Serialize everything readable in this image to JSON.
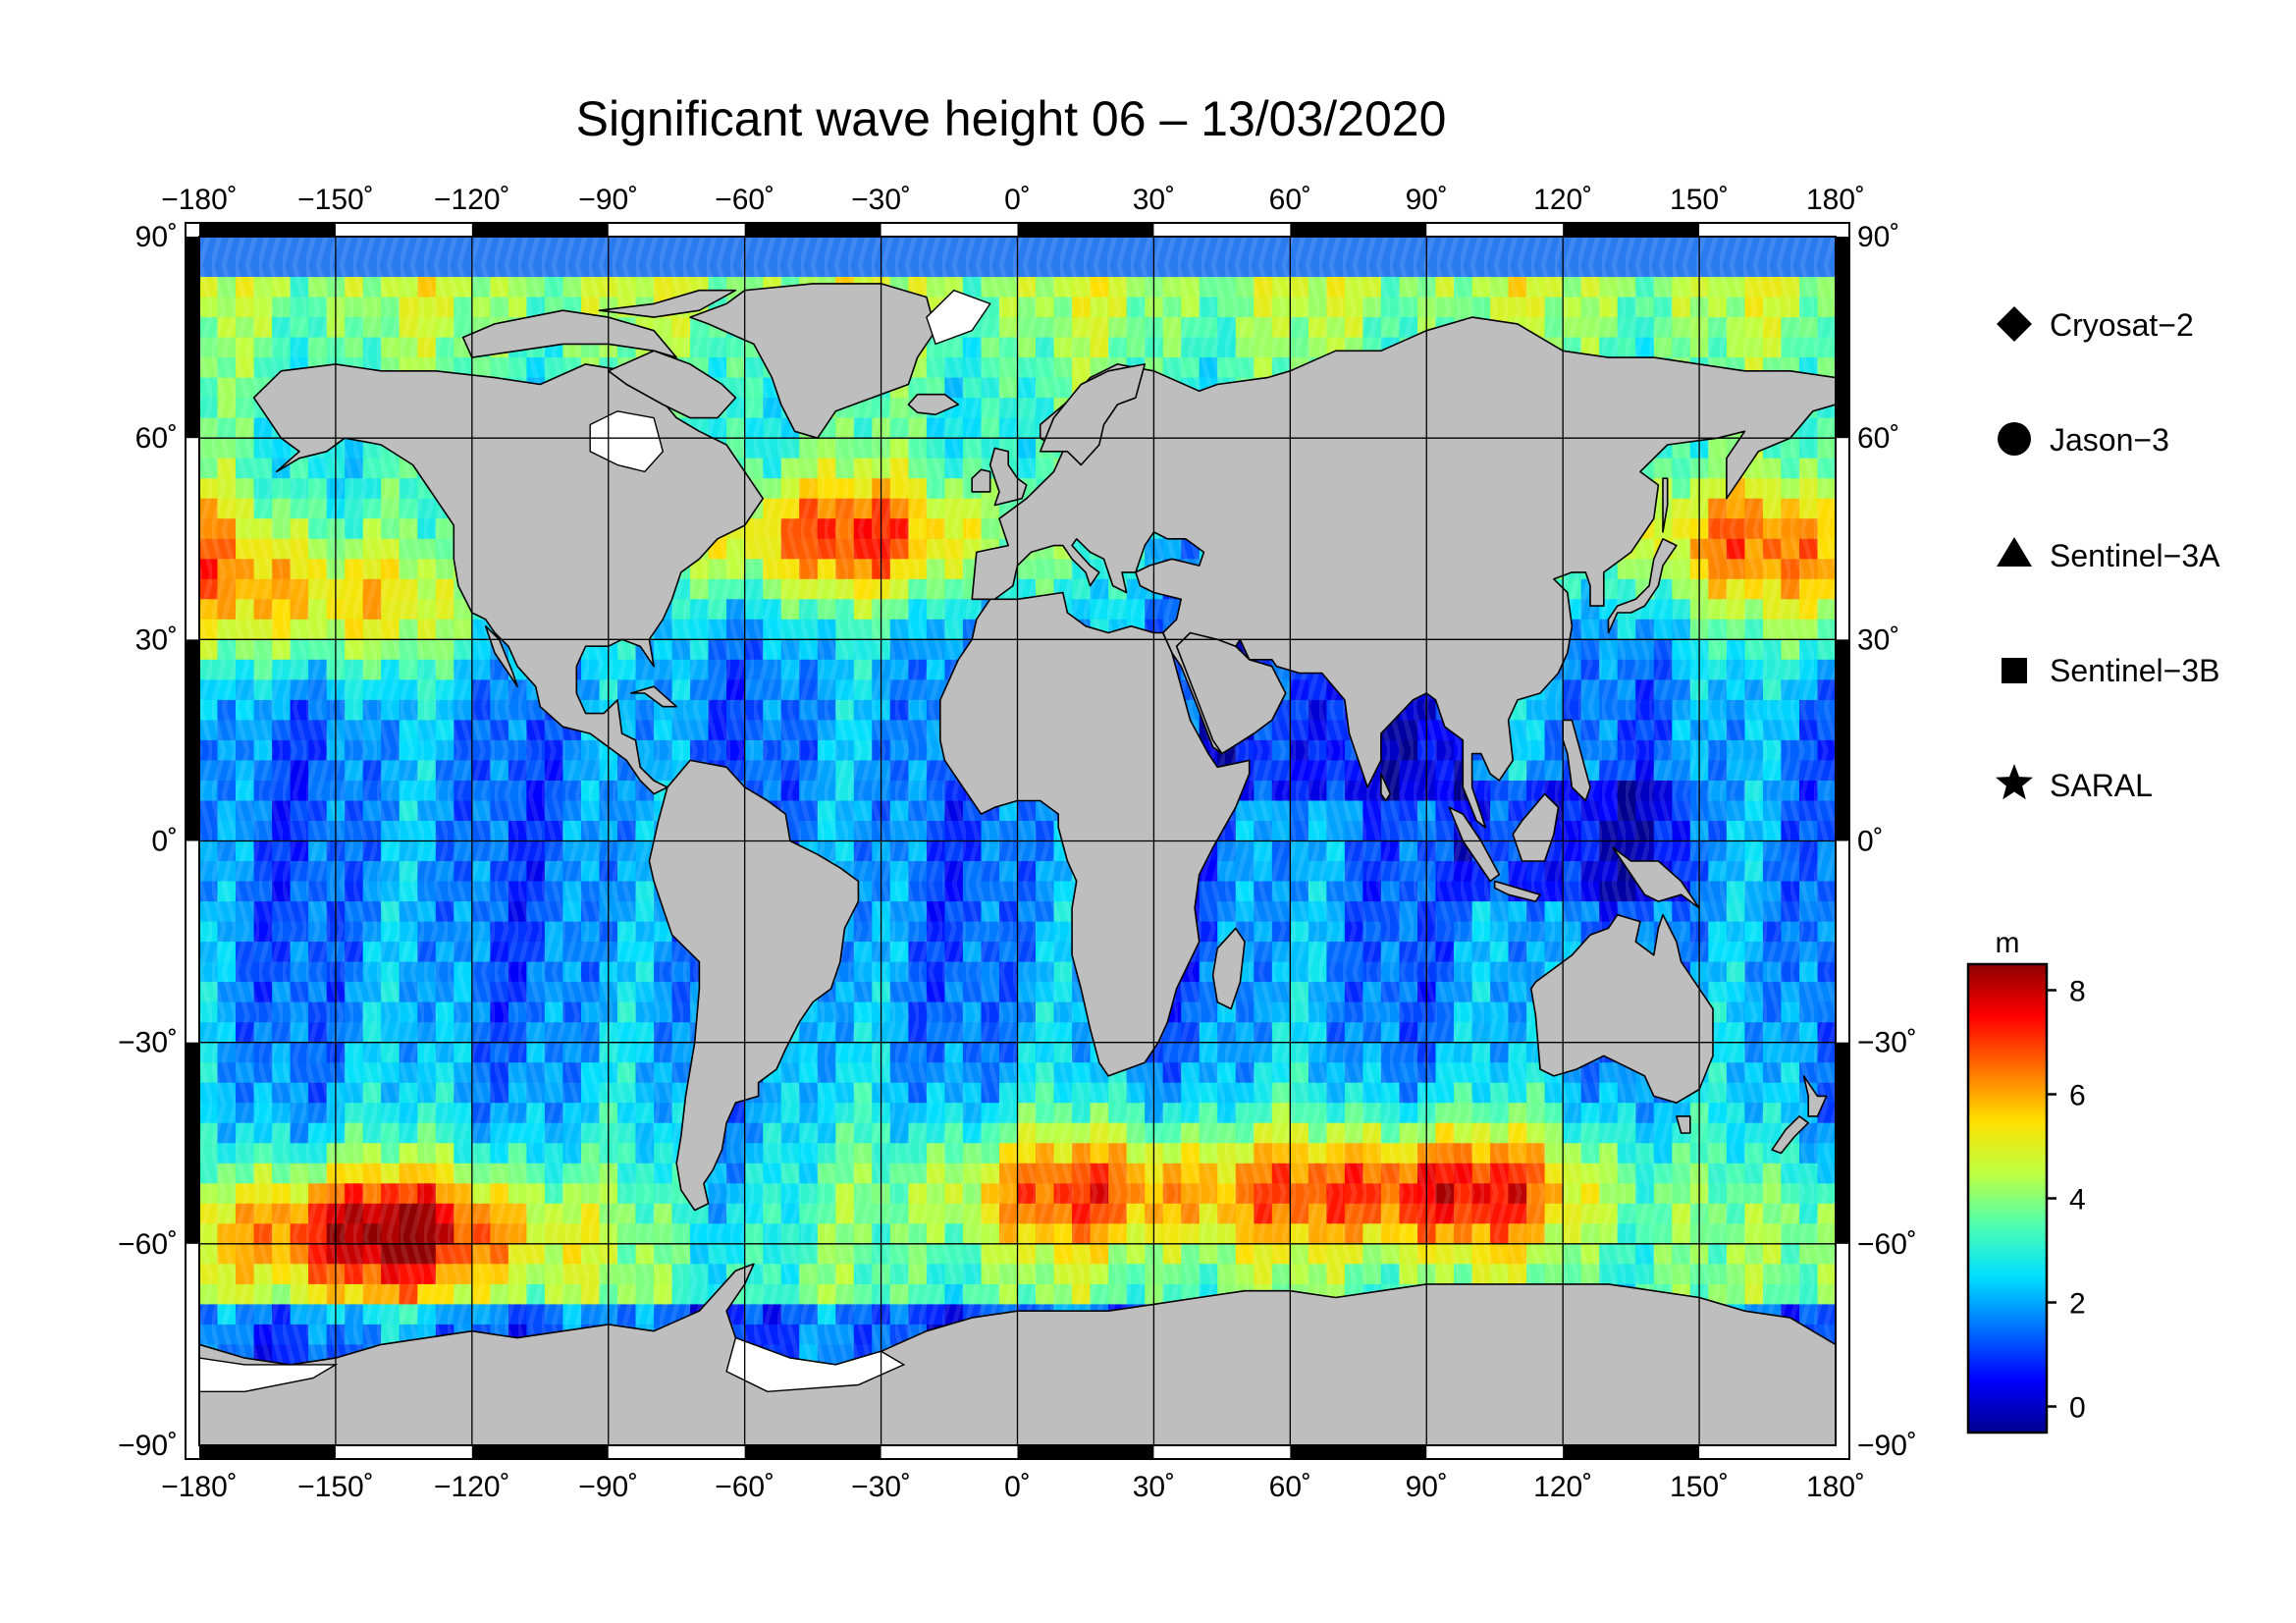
{
  "title": "Significant wave height 06 – 13/03/2020",
  "map": {
    "projection": "equirectangular",
    "lon_range": [
      -180,
      180
    ],
    "lat_range": [
      -90,
      90
    ],
    "lon_ticks": [
      {
        "value": -180,
        "label": "−180˚"
      },
      {
        "value": -150,
        "label": "−150˚"
      },
      {
        "value": -120,
        "label": "−120˚"
      },
      {
        "value": -90,
        "label": "−90˚"
      },
      {
        "value": -60,
        "label": "−60˚"
      },
      {
        "value": -30,
        "label": "−30˚"
      },
      {
        "value": 0,
        "label": "0˚"
      },
      {
        "value": 30,
        "label": "30˚"
      },
      {
        "value": 60,
        "label": "60˚"
      },
      {
        "value": 90,
        "label": "90˚"
      },
      {
        "value": 120,
        "label": "120˚"
      },
      {
        "value": 150,
        "label": "150˚"
      },
      {
        "value": 180,
        "label": "180˚"
      }
    ],
    "lat_ticks": [
      {
        "value": 90,
        "label": "90˚"
      },
      {
        "value": 60,
        "label": "60˚"
      },
      {
        "value": 30,
        "label": "30˚"
      },
      {
        "value": 0,
        "label": "0˚"
      },
      {
        "value": -30,
        "label": "−30˚"
      },
      {
        "value": -60,
        "label": "−60˚"
      },
      {
        "value": -90,
        "label": "−90˚"
      }
    ],
    "land_color": "#bebebe",
    "ice_color": "#ffffff",
    "frame_color": "#000000"
  },
  "legend": {
    "items": [
      {
        "label": "Cryosat−2",
        "marker": "diamond"
      },
      {
        "label": "Jason−3",
        "marker": "circle"
      },
      {
        "label": "Sentinel−3A",
        "marker": "triangle"
      },
      {
        "label": "Sentinel−3B",
        "marker": "square"
      },
      {
        "label": "SARAL",
        "marker": "star"
      }
    ]
  },
  "colorbar": {
    "unit": "m",
    "range": [
      -0.5,
      8.5
    ],
    "ticks": [
      {
        "value": 0,
        "label": "0"
      },
      {
        "value": 2,
        "label": "2"
      },
      {
        "value": 4,
        "label": "4"
      },
      {
        "value": 6,
        "label": "6"
      },
      {
        "value": 8,
        "label": "8"
      }
    ],
    "colormap": "jet",
    "stops": [
      "#00008f",
      "#0000ff",
      "#0070ff",
      "#00dfff",
      "#50ffaf",
      "#bfff40",
      "#ffdf00",
      "#ff7000",
      "#ff0000",
      "#8f0000"
    ]
  },
  "wave_field": {
    "units": "m",
    "high_regions": [
      {
        "name": "North Atlantic",
        "lon": -38,
        "lat": 45,
        "max": 7.0
      },
      {
        "name": "Southern Ocean Pacific",
        "lon": -140,
        "lat": -58,
        "max": 8.0
      },
      {
        "name": "Southern Ocean Atlantic",
        "lon": 15,
        "lat": -52,
        "max": 6.5
      },
      {
        "name": "Southern Ocean Indian",
        "lon": 92,
        "lat": -52,
        "max": 7.5
      },
      {
        "name": "North Pacific",
        "lon": -155,
        "lat": 35,
        "max": 6.0
      },
      {
        "name": "Northwest Pacific",
        "lon": 160,
        "lat": 45,
        "max": 6.0
      }
    ]
  }
}
